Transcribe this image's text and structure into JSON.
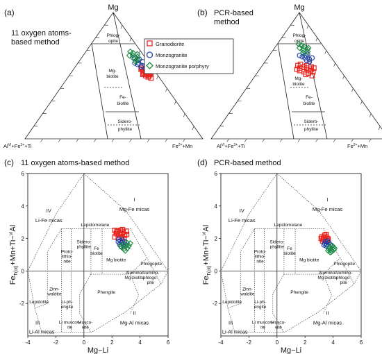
{
  "legend": {
    "items": [
      {
        "label": "Granodiorite",
        "color": "#e8251f",
        "marker": "square"
      },
      {
        "label": "Monzogranite",
        "color": "#1f3fa8",
        "marker": "circle"
      },
      {
        "label": "Monzogranite porphyry",
        "color": "#1d8a45",
        "marker": "diamond"
      }
    ]
  },
  "ternary": {
    "apex_top": "Mg",
    "apex_left": "Al",
    "apex_left_sup": "VI",
    "apex_left_rest": "+Fe",
    "apex_left_sup2": "3+",
    "apex_left_rest2": "+Ti",
    "apex_right": "Fe",
    "apex_right_sup": "2+",
    "apex_right_rest": "+Mn",
    "fields": {
      "phlogopite_1": "Phlog-",
      "phlogopite_2": "opite",
      "mg_biotite_1": "Mg-",
      "mg_biotite_2": "biotite",
      "fe_biotite_1": "Fe-",
      "fe_biotite_2": "biotite",
      "siderophyllite_1": "Sidero-",
      "siderophyllite_2": "phyllite"
    }
  },
  "binary": {
    "xlabel": "Mg−Li",
    "ylabel_main": "Fe",
    "ylabel_sub": "T(ot)",
    "ylabel_rest": "+Mn+Ti−",
    "ylabel_sup": "VI",
    "ylabel_end": "Al",
    "xticks": [
      "-4",
      "-2",
      "0",
      "2",
      "4",
      "6"
    ],
    "yticks": [
      "-2",
      "0",
      "2",
      "4",
      "6"
    ],
    "fields": {
      "r1_a": "I",
      "r1_b": "Mg-Fe micas",
      "r2_a": "II",
      "r2_b": "Mg-Al micas",
      "r3_a": "III",
      "r3_b": "Li-Al micas",
      "r4_a": "IV",
      "r4_b": "Li-Fe micas",
      "lepidomelane": "Lepidomelane",
      "sidero_1": "Sidero-",
      "sidero_2": "phyllite",
      "fe_bio_1": "Fe",
      "fe_bio_2": "biotite",
      "mg_bio": "Mg biotite",
      "phlogopite": "Phlogopite",
      "proto_1": "Proto-",
      "proto_2": "lithio-",
      "proto_3": "nite",
      "zinn_1": "Zinn-",
      "zinn_2": "waldite",
      "lepidolite": "Lepidolite",
      "liph_1": "Li-ph-",
      "liph_2": "engite",
      "phengite": "Phengite",
      "almgbio_1": "Alumino-",
      "almgbio_2": "Mg biotite",
      "alphlog_1": "Alumino-",
      "alphlog_2": "phlogo-",
      "alphlog_3": "pite",
      "limusc_1": "Li muscov-",
      "limusc_2": "ite",
      "musc_1": "Musco-",
      "musc_2": "vite"
    }
  },
  "panels": [
    {
      "letter": "(a)",
      "title_1": "11 oxygen atoms-",
      "title_2": "based method"
    },
    {
      "letter": "(b)",
      "title_1": "PCR-based",
      "title_2": "method"
    },
    {
      "letter": "(c)",
      "title_1": "11 oxygen atoms-based method"
    },
    {
      "letter": "(d)",
      "title_1": "PCR-based method"
    }
  ],
  "chart_data": [
    {
      "type": "scatter",
      "panel": "a",
      "kind": "ternary",
      "components": [
        "Mg",
        "AlVI+Fe3++Ti",
        "Fe2++Mn"
      ],
      "series": [
        {
          "name": "Granodiorite",
          "points": [
            [
              0.52,
              0.05,
              0.43
            ],
            [
              0.53,
              0.05,
              0.42
            ],
            [
              0.54,
              0.06,
              0.4
            ],
            [
              0.51,
              0.06,
              0.43
            ],
            [
              0.5,
              0.05,
              0.45
            ],
            [
              0.52,
              0.07,
              0.41
            ],
            [
              0.55,
              0.05,
              0.4
            ],
            [
              0.53,
              0.07,
              0.4
            ],
            [
              0.49,
              0.06,
              0.45
            ],
            [
              0.51,
              0.04,
              0.45
            ],
            [
              0.54,
              0.04,
              0.42
            ],
            [
              0.56,
              0.06,
              0.38
            ],
            [
              0.5,
              0.07,
              0.43
            ],
            [
              0.52,
              0.03,
              0.45
            ],
            [
              0.48,
              0.05,
              0.47
            ],
            [
              0.55,
              0.07,
              0.38
            ],
            [
              0.53,
              0.03,
              0.44
            ],
            [
              0.51,
              0.08,
              0.41
            ]
          ]
        },
        {
          "name": "Monzogranite",
          "points": [
            [
              0.62,
              0.05,
              0.33
            ],
            [
              0.6,
              0.06,
              0.34
            ],
            [
              0.63,
              0.04,
              0.33
            ],
            [
              0.58,
              0.05,
              0.37
            ],
            [
              0.61,
              0.03,
              0.36
            ],
            [
              0.59,
              0.07,
              0.34
            ],
            [
              0.57,
              0.06,
              0.37
            ],
            [
              0.64,
              0.06,
              0.3
            ],
            [
              0.6,
              0.08,
              0.32
            ],
            [
              0.56,
              0.04,
              0.4
            ]
          ]
        },
        {
          "name": "Monzogranite porphyry",
          "points": [
            [
              0.66,
              0.06,
              0.28
            ],
            [
              0.68,
              0.05,
              0.27
            ],
            [
              0.65,
              0.04,
              0.31
            ],
            [
              0.64,
              0.07,
              0.29
            ],
            [
              0.67,
              0.03,
              0.3
            ],
            [
              0.62,
              0.06,
              0.32
            ],
            [
              0.69,
              0.06,
              0.25
            ],
            [
              0.63,
              0.05,
              0.32
            ],
            [
              0.61,
              0.07,
              0.32
            ],
            [
              0.66,
              0.08,
              0.26
            ]
          ]
        }
      ]
    },
    {
      "type": "scatter",
      "panel": "b",
      "kind": "ternary",
      "components": [
        "Mg",
        "AlVI+Fe3++Ti",
        "Fe2++Mn"
      ],
      "series": [
        {
          "name": "Granodiorite",
          "points": [
            [
              0.56,
              0.18,
              0.26
            ],
            [
              0.55,
              0.2,
              0.25
            ],
            [
              0.54,
              0.17,
              0.29
            ],
            [
              0.57,
              0.19,
              0.24
            ],
            [
              0.53,
              0.21,
              0.26
            ],
            [
              0.55,
              0.16,
              0.29
            ],
            [
              0.58,
              0.17,
              0.25
            ],
            [
              0.52,
              0.19,
              0.29
            ],
            [
              0.56,
              0.22,
              0.22
            ],
            [
              0.54,
              0.23,
              0.23
            ],
            [
              0.57,
              0.15,
              0.28
            ],
            [
              0.53,
              0.16,
              0.31
            ],
            [
              0.59,
              0.2,
              0.21
            ],
            [
              0.51,
              0.21,
              0.28
            ],
            [
              0.55,
              0.24,
              0.21
            ],
            [
              0.58,
              0.22,
              0.2
            ],
            [
              0.5,
              0.18,
              0.32
            ],
            [
              0.56,
              0.14,
              0.3
            ]
          ]
        },
        {
          "name": "Monzogranite",
          "points": [
            [
              0.66,
              0.14,
              0.2
            ],
            [
              0.64,
              0.15,
              0.21
            ],
            [
              0.67,
              0.12,
              0.21
            ],
            [
              0.63,
              0.13,
              0.24
            ],
            [
              0.65,
              0.16,
              0.19
            ],
            [
              0.62,
              0.15,
              0.23
            ],
            [
              0.68,
              0.14,
              0.18
            ],
            [
              0.64,
              0.11,
              0.25
            ],
            [
              0.61,
              0.14,
              0.25
            ],
            [
              0.66,
              0.17,
              0.17
            ]
          ]
        },
        {
          "name": "Monzogranite porphyry",
          "points": [
            [
              0.71,
              0.12,
              0.17
            ],
            [
              0.73,
              0.11,
              0.16
            ],
            [
              0.7,
              0.13,
              0.17
            ],
            [
              0.72,
              0.14,
              0.14
            ],
            [
              0.74,
              0.12,
              0.14
            ],
            [
              0.69,
              0.11,
              0.2
            ],
            [
              0.71,
              0.1,
              0.19
            ],
            [
              0.75,
              0.13,
              0.12
            ],
            [
              0.68,
              0.14,
              0.18
            ],
            [
              0.72,
              0.09,
              0.19
            ]
          ]
        }
      ]
    },
    {
      "type": "scatter",
      "panel": "c",
      "kind": "binary",
      "xlim": [
        -4,
        6
      ],
      "ylim": [
        -4,
        6
      ],
      "series": [
        {
          "name": "Granodiorite",
          "points": [
            [
              2.2,
              2.5
            ],
            [
              2.4,
              2.45
            ],
            [
              2.6,
              2.5
            ],
            [
              2.8,
              2.4
            ],
            [
              3.0,
              2.45
            ],
            [
              2.3,
              2.3
            ],
            [
              2.5,
              2.25
            ],
            [
              2.7,
              2.3
            ],
            [
              2.9,
              2.2
            ],
            [
              2.2,
              2.1
            ],
            [
              2.45,
              2.05
            ],
            [
              2.65,
              2.1
            ],
            [
              2.85,
              2.0
            ],
            [
              3.05,
              2.25
            ],
            [
              2.35,
              2.4
            ],
            [
              2.75,
              2.55
            ]
          ]
        },
        {
          "name": "Monzogranite",
          "points": [
            [
              2.5,
              1.95
            ],
            [
              2.6,
              1.85
            ],
            [
              2.7,
              1.75
            ],
            [
              2.55,
              1.65
            ],
            [
              2.8,
              1.6
            ],
            [
              2.65,
              1.5
            ],
            [
              2.9,
              1.8
            ],
            [
              2.45,
              1.8
            ],
            [
              3.0,
              1.6
            ],
            [
              2.75,
              1.9
            ]
          ]
        },
        {
          "name": "Monzogranite porphyry",
          "points": [
            [
              2.7,
              1.45
            ],
            [
              2.85,
              1.35
            ],
            [
              3.0,
              1.55
            ],
            [
              3.1,
              1.4
            ],
            [
              2.8,
              1.65
            ],
            [
              3.2,
              1.55
            ],
            [
              2.95,
              1.25
            ],
            [
              3.3,
              1.7
            ],
            [
              2.6,
              1.55
            ],
            [
              3.05,
              1.75
            ]
          ]
        }
      ]
    },
    {
      "type": "scatter",
      "panel": "d",
      "kind": "binary",
      "xlim": [
        -4,
        6
      ],
      "ylim": [
        -4,
        6
      ],
      "series": [
        {
          "name": "Granodiorite",
          "points": [
            [
              3.2,
              2.1
            ],
            [
              3.35,
              2.05
            ],
            [
              3.5,
              2.1
            ],
            [
              3.3,
              1.95
            ],
            [
              3.45,
              1.9
            ],
            [
              3.6,
              2.0
            ],
            [
              3.25,
              1.85
            ],
            [
              3.4,
              2.2
            ],
            [
              3.55,
              1.85
            ],
            [
              3.15,
              2.0
            ],
            [
              3.5,
              2.25
            ],
            [
              3.65,
              1.95
            ]
          ]
        },
        {
          "name": "Monzogranite",
          "points": [
            [
              3.4,
              1.7
            ],
            [
              3.55,
              1.65
            ],
            [
              3.7,
              1.75
            ],
            [
              3.5,
              1.55
            ],
            [
              3.65,
              1.5
            ],
            [
              3.8,
              1.6
            ],
            [
              3.35,
              1.6
            ],
            [
              3.6,
              1.85
            ],
            [
              3.75,
              1.45
            ],
            [
              3.45,
              1.8
            ]
          ]
        },
        {
          "name": "Monzogranite porphyry",
          "points": [
            [
              3.7,
              1.35
            ],
            [
              3.85,
              1.3
            ],
            [
              4.0,
              1.45
            ],
            [
              3.9,
              1.2
            ],
            [
              4.05,
              1.3
            ],
            [
              3.75,
              1.5
            ],
            [
              3.95,
              1.55
            ],
            [
              3.8,
              1.15
            ],
            [
              4.1,
              1.4
            ],
            [
              3.65,
              1.25
            ]
          ]
        }
      ]
    }
  ]
}
